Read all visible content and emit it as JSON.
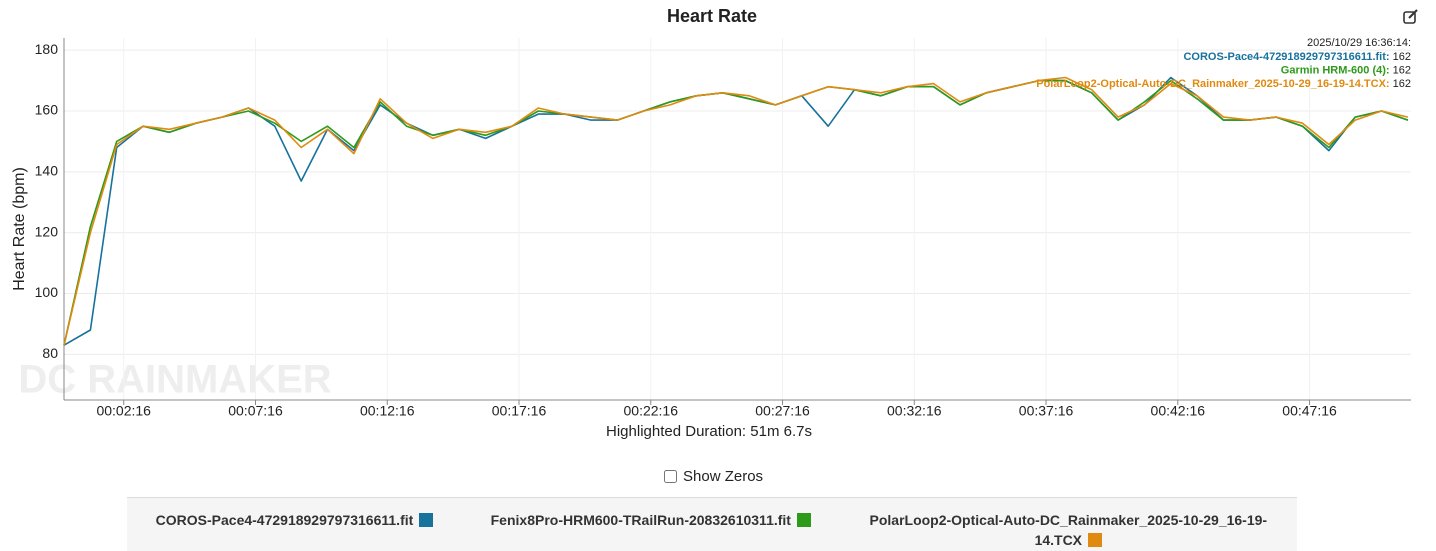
{
  "chart_data": {
    "type": "line",
    "title": "Heart Rate",
    "y_label": "Heart Rate (bpm)",
    "x_label": "Highlighted Duration: 51m 6.7s",
    "watermark": "DC RAINMAKER",
    "x": [
      0,
      60,
      120,
      180,
      240,
      300,
      360,
      420,
      480,
      540,
      600,
      660,
      720,
      780,
      840,
      900,
      960,
      1020,
      1080,
      1140,
      1200,
      1260,
      1320,
      1380,
      1440,
      1500,
      1560,
      1620,
      1680,
      1740,
      1800,
      1860,
      1920,
      1980,
      2040,
      2100,
      2160,
      2220,
      2280,
      2340,
      2400,
      2460,
      2520,
      2580,
      2640,
      2700,
      2760,
      2820,
      2880,
      2940,
      3000,
      3060
    ],
    "series": [
      {
        "name": "COROS-Pace4-472918929797316611.fit",
        "color": "#17729c",
        "values": [
          83,
          88,
          148,
          155,
          153,
          156,
          158,
          161,
          155,
          137,
          154,
          147,
          162,
          156,
          152,
          154,
          151,
          155,
          159,
          159,
          157,
          157,
          160,
          163,
          165,
          166,
          164,
          162,
          165,
          155,
          167,
          165,
          168,
          168,
          162,
          166,
          168,
          170,
          170,
          166,
          157,
          162,
          171,
          165,
          157,
          157,
          158,
          155,
          147,
          158,
          160,
          157
        ]
      },
      {
        "name": "Fenix8Pro-HRM600-TRailRun-20832610311.fit",
        "color": "#2e9a1a",
        "values": [
          83,
          122,
          150,
          155,
          153,
          156,
          158,
          160,
          156,
          150,
          155,
          148,
          163,
          155,
          152,
          154,
          152,
          155,
          160,
          159,
          158,
          157,
          160,
          163,
          165,
          166,
          164,
          162,
          165,
          168,
          167,
          165,
          168,
          168,
          162,
          166,
          168,
          170,
          170,
          166,
          157,
          163,
          170,
          164,
          157,
          157,
          158,
          155,
          148,
          158,
          160,
          157
        ]
      },
      {
        "name": "PolarLoop2-Optical-Auto-DC_Rainmaker_2025-10-29_16-19-14.TCX",
        "color": "#e08a10",
        "values": [
          83,
          120,
          149,
          155,
          154,
          156,
          158,
          161,
          157,
          148,
          154,
          146,
          164,
          156,
          151,
          154,
          153,
          155,
          161,
          159,
          158,
          157,
          160,
          162,
          165,
          166,
          165,
          162,
          165,
          168,
          167,
          166,
          168,
          169,
          163,
          166,
          168,
          170,
          171,
          167,
          158,
          162,
          169,
          165,
          158,
          157,
          158,
          156,
          149,
          157,
          160,
          158
        ]
      }
    ],
    "xlim": [
      0,
      3067
    ],
    "ylim": [
      65,
      184
    ],
    "xticks": [
      {
        "value": 136,
        "label": "00:02:16"
      },
      {
        "value": 436,
        "label": "00:07:16"
      },
      {
        "value": 736,
        "label": "00:12:16"
      },
      {
        "value": 1036,
        "label": "00:17:16"
      },
      {
        "value": 1336,
        "label": "00:22:16"
      },
      {
        "value": 1636,
        "label": "00:27:16"
      },
      {
        "value": 1936,
        "label": "00:32:16"
      },
      {
        "value": 2236,
        "label": "00:37:16"
      },
      {
        "value": 2536,
        "label": "00:42:16"
      },
      {
        "value": 2836,
        "label": "00:47:16"
      }
    ],
    "yticks": [
      80,
      100,
      120,
      140,
      160,
      180
    ],
    "grid": true,
    "tooltip": {
      "time": "2025/10/29 16:36:14:",
      "entries": [
        {
          "label": "COROS-Pace4-472918929797316611.fit:",
          "value": 162,
          "color": "#17729c"
        },
        {
          "label": "Garmin HRM-600 (4):",
          "value": 162,
          "color": "#2e9a1a"
        },
        {
          "label": "PolarLoop2-Optical-Auto-DC_Rainmaker_2025-10-29_16-19-14.TCX:",
          "value": 162,
          "color": "#e08a10"
        }
      ]
    },
    "show_zeros_label": "Show Zeros"
  }
}
